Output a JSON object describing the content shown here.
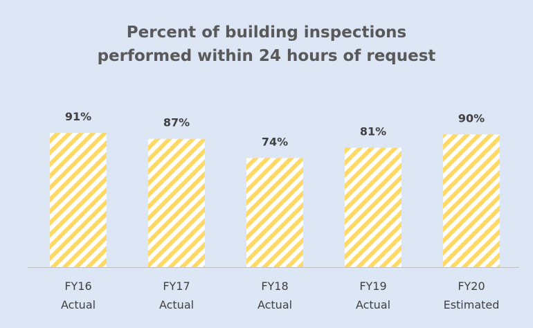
{
  "chart_data": {
    "type": "bar",
    "title": "Percent of building inspections performed within 24 hours of request",
    "categories": [
      "FY16 Actual",
      "FY17 Actual",
      "FY18 Actual",
      "FY19 Actual",
      "FY20 Estimated"
    ],
    "values": [
      91,
      87,
      74,
      81,
      90
    ],
    "value_labels": [
      "91%",
      "87%",
      "74%",
      "81%",
      "90%"
    ],
    "color": "#ffd966"
  }
}
